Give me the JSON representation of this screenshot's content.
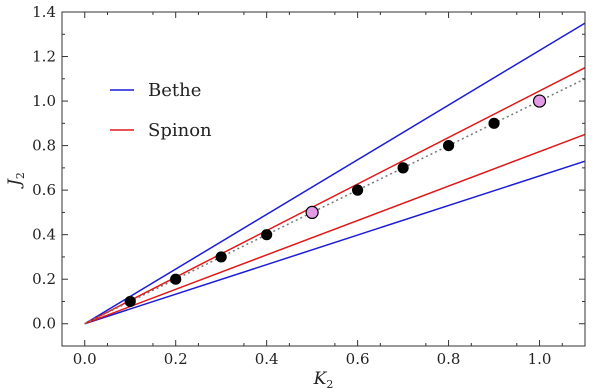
{
  "chart_data": {
    "type": "line",
    "title": "",
    "xlabel": "K",
    "xlabel_sub": "2",
    "ylabel": "J",
    "ylabel_sub": "2",
    "xlim": [
      -0.05,
      1.1
    ],
    "ylim": [
      -0.1,
      1.4
    ],
    "xticks": [
      "0.0",
      "0.2",
      "0.4",
      "0.6",
      "0.8",
      "1.0"
    ],
    "yticks": [
      "0.0",
      "0.2",
      "0.4",
      "0.6",
      "0.8",
      "1.0",
      "1.2",
      "1.4"
    ],
    "xtick_values": [
      0.0,
      0.2,
      0.4,
      0.6,
      0.8,
      1.0
    ],
    "ytick_values": [
      0.0,
      0.2,
      0.4,
      0.6,
      0.8,
      1.0,
      1.2,
      1.4
    ],
    "legend_position": "left",
    "legend": [
      {
        "name": "Bethe",
        "color": "#1c1cd6"
      },
      {
        "name": "Spinon",
        "color": "#e01818"
      }
    ],
    "lines": [
      {
        "series": "Bethe",
        "bound": "upper",
        "x": [
          0,
          1.1
        ],
        "y": [
          0,
          1.35
        ],
        "color": "#1c1cd6"
      },
      {
        "series": "Bethe",
        "bound": "lower",
        "x": [
          0,
          1.1
        ],
        "y": [
          0,
          0.73
        ],
        "color": "#1c1cd6"
      },
      {
        "series": "Spinon",
        "bound": "upper",
        "x": [
          0,
          1.1
        ],
        "y": [
          0,
          1.15
        ],
        "color": "#e01818"
      },
      {
        "series": "Spinon",
        "bound": "lower",
        "x": [
          0,
          1.1
        ],
        "y": [
          0,
          0.85
        ],
        "color": "#e01818"
      }
    ],
    "reference_line": {
      "x": [
        0,
        1.1
      ],
      "y": [
        0,
        1.1
      ],
      "style": "dotted",
      "color": "#777777"
    },
    "points": {
      "x": [
        0.1,
        0.2,
        0.3,
        0.4,
        0.5,
        0.6,
        0.7,
        0.8,
        0.9,
        1.0
      ],
      "y": [
        0.1,
        0.2,
        0.3,
        0.4,
        0.5,
        0.6,
        0.7,
        0.8,
        0.9,
        1.0
      ],
      "highlight": [
        false,
        false,
        false,
        false,
        true,
        false,
        false,
        false,
        false,
        true
      ],
      "color": "#000000",
      "highlight_color": "#e39be6"
    }
  }
}
